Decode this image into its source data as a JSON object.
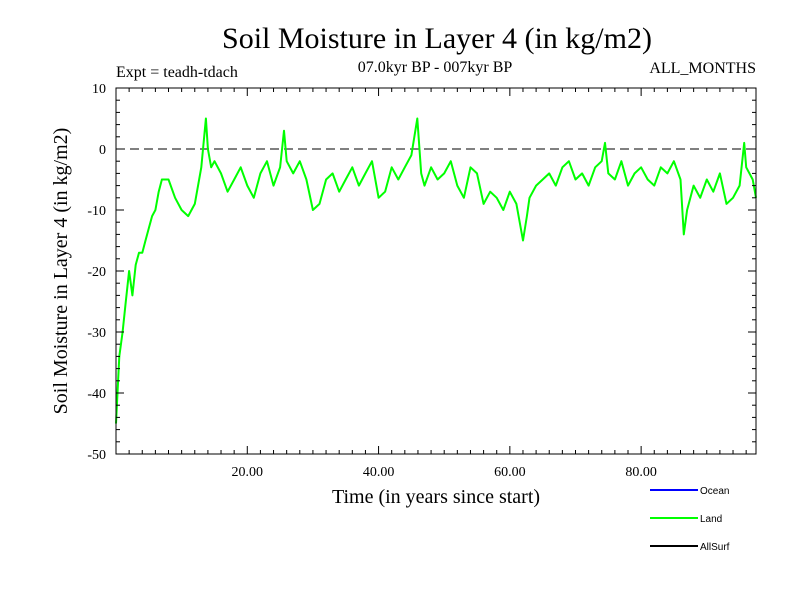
{
  "chart_data": {
    "type": "line",
    "title": "Soil Moisture in Layer 4 (in kg/m2)",
    "subtitle_left": "Expt = teadh-tdach",
    "subtitle_center": "07.0kyr BP - 007kyr BP",
    "subtitle_right": "ALL_MONTHS",
    "xlabel": "Time (in years since start)",
    "ylabel": "Soil Moisture in Layer 4 (in kg/m2)",
    "xlim": [
      0,
      97.5
    ],
    "ylim": [
      -50,
      10
    ],
    "xticks": [
      20,
      40,
      60,
      80
    ],
    "xtick_labels": [
      "20.00",
      "40.00",
      "60.00",
      "80.00"
    ],
    "yticks": [
      10,
      0,
      -10,
      -20,
      -30,
      -40,
      -50
    ],
    "ytick_labels": [
      "10",
      "0",
      "-10",
      "-20",
      "-30",
      "-40",
      "-50"
    ],
    "reference_line": 0,
    "legend": [
      {
        "name": "Ocean",
        "color": "#0000ff"
      },
      {
        "name": "Land",
        "color": "#00ff00"
      },
      {
        "name": "AllSurf",
        "color": "#000000"
      }
    ],
    "series": [
      {
        "name": "Land",
        "color": "#00ff00",
        "x": [
          0,
          0.5,
          1,
          1.5,
          2,
          2.5,
          3,
          3.5,
          4,
          4.5,
          5,
          5.5,
          6,
          6.5,
          7,
          8,
          9,
          10,
          11,
          12,
          13,
          13.7,
          14,
          14.5,
          15,
          16,
          17,
          18,
          19,
          20,
          21,
          22,
          23,
          24,
          25,
          25.6,
          26,
          27,
          28,
          29,
          30,
          31,
          32,
          33,
          34,
          35,
          36,
          37,
          38,
          39,
          40,
          41,
          42,
          43,
          44,
          45,
          45.9,
          46.5,
          47,
          48,
          49,
          50,
          51,
          52,
          53,
          54,
          55,
          56,
          57,
          58,
          59,
          60,
          61,
          62,
          62.6,
          63,
          64,
          65,
          66,
          67,
          68,
          69,
          70,
          71,
          72,
          73,
          74,
          74.5,
          75,
          76,
          77,
          78,
          79,
          80,
          81,
          82,
          83,
          84,
          85,
          86,
          86.5,
          87,
          88,
          89,
          90,
          91,
          92,
          93,
          94,
          95,
          95.7,
          96,
          97,
          97.5
        ],
        "y": [
          -45,
          -34,
          -30,
          -25,
          -20,
          -24,
          -19,
          -17,
          -17,
          -15,
          -13,
          -11,
          -10,
          -7,
          -5,
          -5,
          -8,
          -10,
          -11,
          -9,
          -3,
          5,
          0,
          -3,
          -2,
          -4,
          -7,
          -5,
          -3,
          -6,
          -8,
          -4,
          -2,
          -6,
          -3,
          3,
          -2,
          -4,
          -2,
          -5,
          -10,
          -9,
          -5,
          -4,
          -7,
          -5,
          -3,
          -6,
          -4,
          -2,
          -8,
          -7,
          -3,
          -5,
          -3,
          -1,
          5,
          -4,
          -6,
          -3,
          -5,
          -4,
          -2,
          -6,
          -8,
          -3,
          -4,
          -9,
          -7,
          -8,
          -10,
          -7,
          -9,
          -15,
          -11,
          -8,
          -6,
          -5,
          -4,
          -6,
          -3,
          -2,
          -5,
          -4,
          -6,
          -3,
          -2,
          1,
          -4,
          -5,
          -2,
          -6,
          -4,
          -3,
          -5,
          -6,
          -3,
          -4,
          -2,
          -5,
          -14,
          -10,
          -6,
          -8,
          -5,
          -7,
          -4,
          -9,
          -8,
          -6,
          1,
          -3,
          -5,
          -8
        ]
      }
    ]
  }
}
